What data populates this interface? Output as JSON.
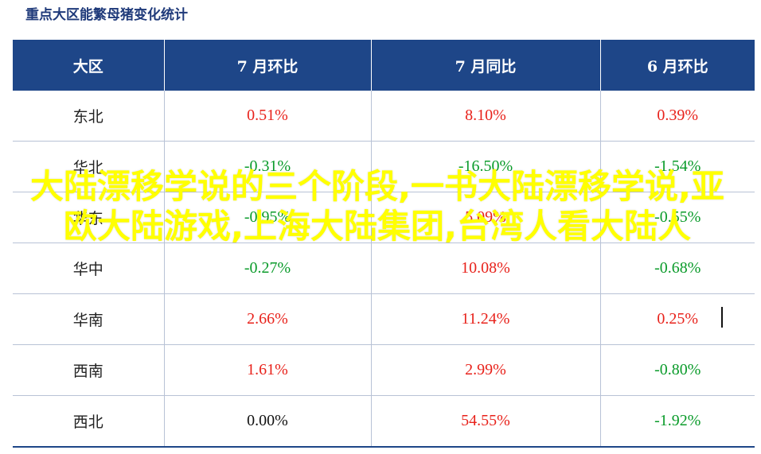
{
  "title": "重点大区能繁母猪变化统计",
  "header": [
    "大区",
    "7 月环比",
    "7 月同比",
    "6 月环比"
  ],
  "rows": [
    {
      "region": "东北",
      "mom_jul": "0.51%",
      "yoy_jul": "8.10%",
      "mom_jun": "0.39%",
      "colors": [
        "red",
        "red",
        "red"
      ]
    },
    {
      "region": "华北",
      "mom_jul": "-0.31%",
      "yoy_jul": "-16.50%",
      "mom_jun": "-1.54%",
      "colors": [
        "green",
        "green",
        "green"
      ]
    },
    {
      "region": "华东",
      "mom_jul": "-0.95%",
      "yoy_jul": "5.09%",
      "mom_jun": "-0.55%",
      "colors": [
        "green",
        "red",
        "green"
      ]
    },
    {
      "region": "华中",
      "mom_jul": "-0.27%",
      "yoy_jul": "10.08%",
      "mom_jun": "-0.68%",
      "colors": [
        "green",
        "red",
        "green"
      ]
    },
    {
      "region": "华南",
      "mom_jul": "2.66%",
      "yoy_jul": "11.24%",
      "mom_jun": "0.25%",
      "colors": [
        "red",
        "red",
        "red"
      ]
    },
    {
      "region": "西南",
      "mom_jul": "1.61%",
      "yoy_jul": "2.99%",
      "mom_jun": "-0.80%",
      "colors": [
        "red",
        "red",
        "green"
      ]
    },
    {
      "region": "西北",
      "mom_jul": "0.00%",
      "yoy_jul": "54.55%",
      "mom_jun": "-1.92%",
      "colors": [
        "black",
        "red",
        "green"
      ]
    }
  ],
  "watermark": "大陆漂移学说的三个阶段,一书大陆漂移学说,亚欧大陆游戏,上海大陆集团,台湾人看大陆人",
  "colors": {
    "header_bg": "#1e4688",
    "positive": "#e8221b",
    "negative": "#0a9b2a",
    "watermark": "#ffff00"
  }
}
